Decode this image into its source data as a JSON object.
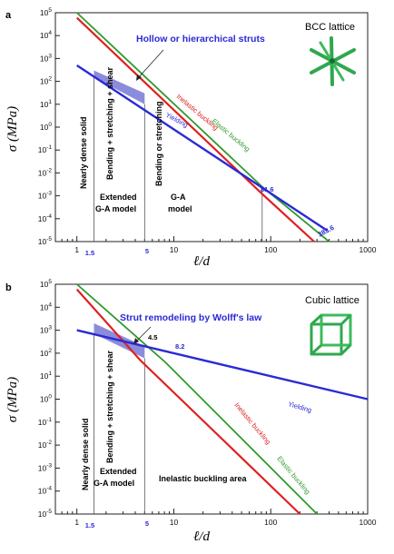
{
  "colors": {
    "elastic": "#2e9a2e",
    "inelastic": "#e02020",
    "yielding": "#2a2ad6",
    "annotation": "#2a2ad6",
    "highlight": "#7f7fd8"
  },
  "panels": [
    {
      "letter": "a",
      "lattice": "BCC lattice",
      "annotation": "Hollow or hierarchical struts",
      "ylabel": "σ (MPa)",
      "xlabel": "ℓ/d",
      "curve_labels": {
        "yielding": "Yielding",
        "inelastic": "Inelastic buckling",
        "elastic": "Elastic buckling"
      },
      "regions": [
        "Nearly dense solid",
        "Bending + stretching + shear",
        "Bending or stretching"
      ],
      "model_labels": [
        "Extended",
        "G-A model",
        "G-A",
        "model"
      ],
      "marked_x": [
        "1.5",
        "5"
      ],
      "point_labels": [
        "81.6",
        "383.6"
      ]
    },
    {
      "letter": "b",
      "lattice": "Cubic lattice",
      "annotation": "Strut remodeling by Wolff's law",
      "ylabel": "σ (MPa)",
      "xlabel": "ℓ/d",
      "curve_labels": {
        "yielding": "Yielding",
        "inelastic": "Inelastic buckling",
        "elastic": "Elastic buckling"
      },
      "regions": [
        "Nearly dense solid",
        "Bending + stretching + shear"
      ],
      "model_labels": [
        "Extended",
        "G-A model"
      ],
      "area_label": "Inelastic buckling area",
      "marked_x": [
        "1.5",
        "5"
      ],
      "point_labels": [
        "4.5",
        "8.2"
      ]
    }
  ],
  "chart_data": [
    {
      "type": "line",
      "title": "",
      "xlabel": "ℓ/d",
      "ylabel": "σ (MPa)",
      "xscale": "log",
      "yscale": "log",
      "xlim": [
        0.6,
        1000
      ],
      "ylim": [
        1e-05,
        100000
      ],
      "x_ticks": [
        "1",
        "10",
        "100",
        "1000"
      ],
      "y_ticks": [
        "10^5",
        "10^4",
        "10^3",
        "10^2",
        "10^1",
        "10^0",
        "10^-1",
        "10^-2",
        "10^-3",
        "10^-4",
        "10^-5"
      ],
      "series": [
        {
          "name": "Yielding",
          "x": [
            1,
            383.6
          ],
          "y": [
            500,
            3e-05
          ]
        },
        {
          "name": "Inelastic buckling",
          "x": [
            1,
            81.6,
            280
          ],
          "y": [
            60000,
            0.0012,
            1e-05
          ]
        },
        {
          "name": "Elastic buckling",
          "x": [
            1,
            81.6,
            400
          ],
          "y": [
            100000,
            0.0025,
            1e-05
          ]
        }
      ],
      "markers_x": [
        1.5,
        5,
        81.6,
        383.6
      ],
      "highlight": {
        "x": [
          1.5,
          5
        ],
        "y_top": [
          300,
          30
        ],
        "y_bottom": [
          150,
          10
        ]
      }
    },
    {
      "type": "line",
      "title": "",
      "xlabel": "ℓ/d",
      "ylabel": "σ (MPa)",
      "xscale": "log",
      "yscale": "log",
      "xlim": [
        0.6,
        1000
      ],
      "ylim": [
        1e-05,
        100000
      ],
      "x_ticks": [
        "1",
        "10",
        "100",
        "1000"
      ],
      "y_ticks": [
        "10^5",
        "10^4",
        "10^3",
        "10^2",
        "10^1",
        "10^0",
        "10^-1",
        "10^-2",
        "10^-3",
        "10^-4",
        "10^-5"
      ],
      "series": [
        {
          "name": "Yielding",
          "x": [
            1,
            1000
          ],
          "y": [
            1000,
            1
          ]
        },
        {
          "name": "Inelastic buckling",
          "x": [
            1,
            4.5,
            200
          ],
          "y": [
            60000,
            50,
            1e-05
          ]
        },
        {
          "name": "Elastic buckling",
          "x": [
            1,
            8.2,
            300
          ],
          "y": [
            100000,
            40,
            1e-05
          ]
        }
      ],
      "markers_x": [
        1.5,
        4.5,
        5,
        8.2
      ],
      "highlight": {
        "x": [
          1.5,
          5
        ],
        "y_top": [
          2000,
          200
        ],
        "y_bottom": [
          700,
          60
        ]
      }
    }
  ]
}
